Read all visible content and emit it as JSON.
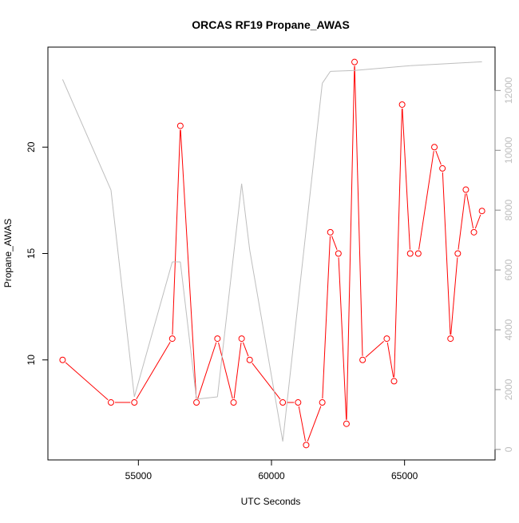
{
  "chart_data": {
    "type": "line",
    "title": "ORCAS RF19 Propane_AWAS",
    "xlabel": "UTC Seconds",
    "ylabel": "Propane_AWAS",
    "xlim": [
      51600,
      68400
    ],
    "ylim": [
      5.3,
      24.7
    ],
    "y2lim": [
      -350,
      13450
    ],
    "x_ticks": [
      55000,
      60000,
      65000
    ],
    "y_ticks": [
      10,
      15,
      20
    ],
    "y2_ticks": [
      0,
      2000,
      4000,
      6000,
      8000,
      10000,
      12000
    ],
    "grid": false,
    "colors": {
      "primary": "#ff0000",
      "secondary": "#bebebe",
      "axis": "#000000"
    },
    "series": [
      {
        "axis": "left",
        "style": "points-and-lines",
        "color": "#ff0000",
        "x": [
          52152,
          53970,
          54848,
          56273,
          56576,
          57182,
          57970,
          58576,
          58879,
          59182,
          60424,
          61000,
          61303,
          61909,
          62212,
          62515,
          62818,
          63121,
          63424,
          64333,
          64606,
          64909,
          65212,
          65515,
          66121,
          66424,
          66727,
          67000,
          67303,
          67606,
          67909
        ],
        "y": [
          10,
          8,
          8,
          11,
          21,
          8,
          11,
          8,
          11,
          10,
          8,
          8,
          6,
          8,
          16,
          15,
          7,
          24,
          10,
          11,
          9,
          22,
          15,
          15,
          20,
          19,
          11,
          15,
          18,
          16,
          17
        ]
      },
      {
        "axis": "right",
        "style": "line",
        "color": "#bebebe",
        "x": [
          52152,
          53970,
          54848,
          56273,
          56576,
          57182,
          57970,
          58879,
          59182,
          60424,
          61909,
          62212,
          63121,
          65212,
          67909
        ],
        "y": [
          12370,
          8670,
          1760,
          6270,
          6270,
          1680,
          1760,
          8880,
          6670,
          270,
          12240,
          12640,
          12670,
          12830,
          12960
        ]
      }
    ]
  }
}
